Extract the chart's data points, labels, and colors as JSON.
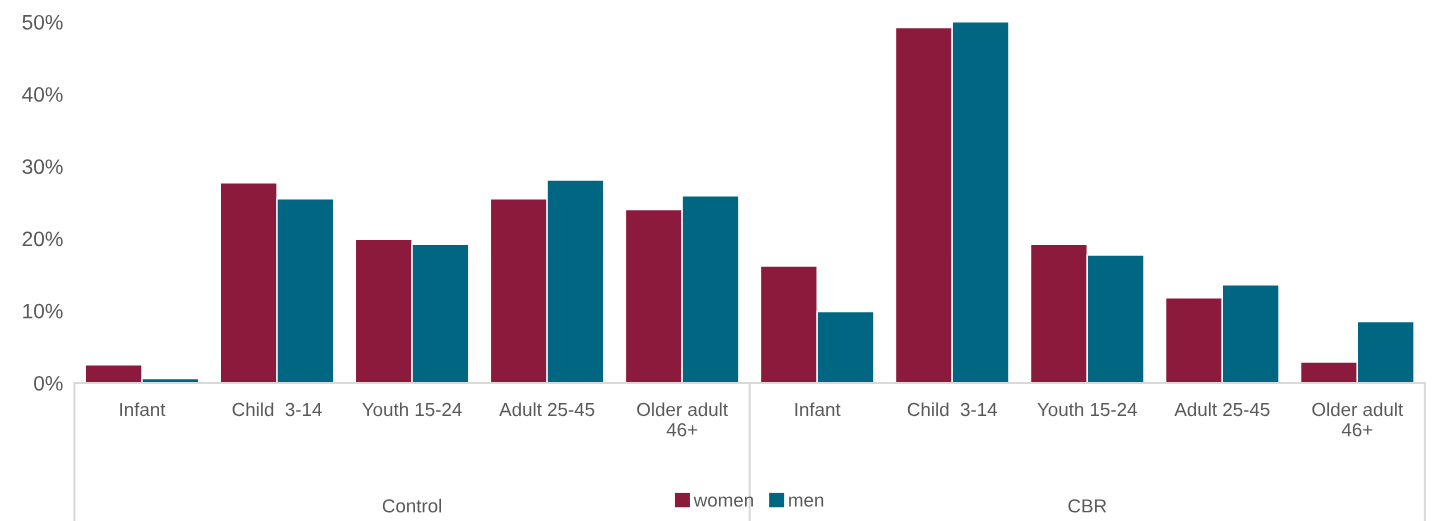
{
  "chart_data": {
    "type": "bar",
    "categories": [
      "Infant",
      "Child  3-14",
      "Youth 15-24",
      "Adult 25-45",
      "Older adult\n46+",
      "Infant",
      "Child  3-14",
      "Youth 15-24",
      "Adult 25-45",
      "Older adult\n46+"
    ],
    "series": [
      {
        "name": "women",
        "color": "#8b1a3c",
        "values": [
          2.5,
          27.7,
          19.9,
          25.5,
          24.0,
          16.2,
          49.2,
          19.2,
          11.8,
          2.9
        ]
      },
      {
        "name": "men",
        "color": "#006681",
        "values": [
          0.6,
          25.5,
          19.2,
          28.1,
          25.9,
          9.9,
          50.0,
          17.7,
          13.6,
          8.5
        ]
      }
    ],
    "annotations": [
      "Control",
      "CBR"
    ],
    "ylim": [
      0,
      50
    ],
    "yticks": [
      {
        "value": 0,
        "label": "0%"
      },
      {
        "value": 10,
        "label": "10%"
      },
      {
        "value": 20,
        "label": "20%"
      },
      {
        "value": 30,
        "label": "30%"
      },
      {
        "value": 40,
        "label": "40%"
      },
      {
        "value": 50,
        "label": "50%"
      }
    ],
    "grid": false,
    "legend": "bottom"
  }
}
